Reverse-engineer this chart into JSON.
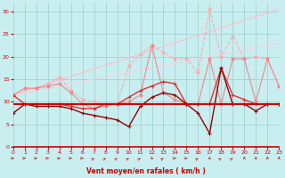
{
  "xlabel": "Vent moyen/en rafales ( km/h )",
  "bg_color": "#c8eef0",
  "grid_color": "#99cccc",
  "xlim": [
    0,
    23
  ],
  "ylim": [
    0,
    32
  ],
  "x_ticks": [
    0,
    1,
    2,
    3,
    4,
    5,
    6,
    7,
    8,
    9,
    10,
    11,
    12,
    13,
    14,
    15,
    16,
    17,
    18,
    19,
    20,
    21,
    22,
    23
  ],
  "y_ticks": [
    0,
    5,
    10,
    15,
    20,
    25,
    30
  ],
  "lines": [
    {
      "x": [
        0,
        23
      ],
      "y": [
        11.5,
        30.5
      ],
      "color": "#ffbbcc",
      "lw": 0.8,
      "marker": null,
      "ms": 0,
      "ls": "-"
    },
    {
      "x": [
        0,
        23
      ],
      "y": [
        11.5,
        23.0
      ],
      "color": "#ffccdd",
      "lw": 0.8,
      "marker": null,
      "ms": 0,
      "ls": "-"
    },
    {
      "x": [
        0,
        1,
        2,
        3,
        4,
        5,
        6,
        7,
        8,
        9,
        10,
        11,
        12,
        13,
        14,
        15,
        16,
        17,
        18,
        19,
        20,
        21,
        22,
        23
      ],
      "y": [
        11.5,
        13.0,
        13.0,
        14.0,
        15.5,
        12.5,
        10.5,
        10.0,
        9.5,
        9.5,
        18.0,
        20.5,
        22.5,
        21.0,
        19.5,
        19.5,
        16.5,
        30.5,
        20.0,
        24.5,
        19.5,
        20.0,
        19.5,
        13.5
      ],
      "color": "#ffaaaa",
      "lw": 0.8,
      "marker": "o",
      "ms": 2.0,
      "ls": "--"
    },
    {
      "x": [
        0,
        1,
        2,
        3,
        4,
        5,
        6,
        7,
        8,
        9,
        10,
        11,
        12,
        13,
        14,
        15,
        16,
        17,
        18,
        19,
        20,
        21,
        22,
        23
      ],
      "y": [
        11.5,
        13.0,
        13.0,
        13.5,
        14.0,
        12.0,
        9.5,
        8.5,
        9.0,
        9.5,
        10.0,
        11.5,
        22.5,
        12.0,
        10.5,
        9.5,
        9.5,
        19.5,
        9.5,
        19.5,
        19.5,
        10.0,
        19.5,
        13.5
      ],
      "color": "#ee8888",
      "lw": 0.8,
      "marker": "o",
      "ms": 2.0,
      "ls": "-"
    },
    {
      "x": [
        0,
        1,
        2,
        3,
        4,
        5,
        6,
        7,
        8,
        9,
        10,
        11,
        12,
        13,
        14,
        15,
        16,
        17,
        18,
        19,
        20,
        21,
        22,
        23
      ],
      "y": [
        11.5,
        9.5,
        9.5,
        9.5,
        9.5,
        9.0,
        8.5,
        8.5,
        9.5,
        9.5,
        11.0,
        12.5,
        13.5,
        14.5,
        14.0,
        9.5,
        9.5,
        9.5,
        17.5,
        11.5,
        10.5,
        9.5,
        9.5,
        9.5
      ],
      "color": "#dd3333",
      "lw": 1.0,
      "marker": "+",
      "ms": 3.0,
      "ls": "-"
    },
    {
      "x": [
        0,
        1,
        2,
        3,
        4,
        5,
        6,
        7,
        8,
        9,
        10,
        11,
        12,
        13,
        14,
        15,
        16,
        17,
        18,
        19,
        20,
        21,
        22,
        23
      ],
      "y": [
        7.5,
        9.5,
        9.0,
        9.0,
        9.0,
        8.5,
        7.5,
        7.0,
        6.5,
        6.0,
        4.5,
        9.0,
        11.0,
        12.0,
        11.5,
        9.5,
        7.5,
        3.0,
        17.5,
        9.5,
        9.5,
        8.0,
        9.5,
        9.5
      ],
      "color": "#990000",
      "lw": 1.0,
      "marker": "+",
      "ms": 3.0,
      "ls": "-"
    },
    {
      "x": [
        0,
        1,
        2,
        3,
        4,
        5,
        6,
        7,
        8,
        9,
        10,
        11,
        12,
        13,
        14,
        15,
        16,
        17,
        18,
        19,
        20,
        21,
        22,
        23
      ],
      "y": [
        9.5,
        9.5,
        9.5,
        9.5,
        9.5,
        9.5,
        9.5,
        9.5,
        9.5,
        9.5,
        9.5,
        9.5,
        9.5,
        9.5,
        9.5,
        9.5,
        9.5,
        9.5,
        9.5,
        9.5,
        9.5,
        9.5,
        9.5,
        9.5
      ],
      "color": "#cc0000",
      "lw": 1.5,
      "marker": null,
      "ms": 0,
      "ls": "-"
    }
  ],
  "wind_arrows": {
    "y_data": -2.5,
    "color": "#dd2222",
    "directions": [
      0,
      0,
      0,
      0,
      0,
      0,
      0,
      45,
      45,
      45,
      45,
      45,
      90,
      45,
      0,
      0,
      45,
      90,
      45,
      45,
      90,
      90,
      90,
      90
    ]
  }
}
